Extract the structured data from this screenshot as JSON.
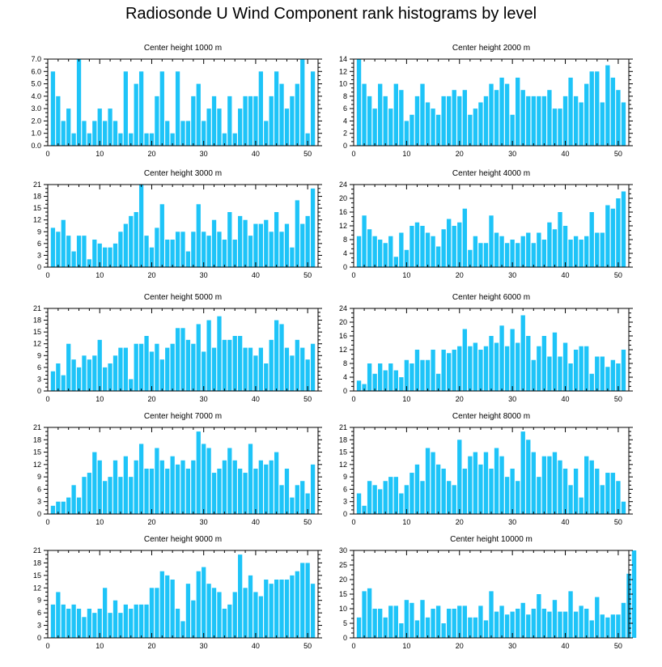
{
  "title": "Radiosonde U Wind Component rank histograms by level",
  "colors": {
    "bar": "#1ec4f8",
    "bar_edge": "#ffffff",
    "axis": "#000000"
  },
  "chart_data": [
    {
      "type": "bar",
      "title": "Center height 1000 m",
      "xlim": [
        0,
        52
      ],
      "ylim": [
        0,
        7
      ],
      "xticks": [
        0,
        10,
        20,
        30,
        40,
        50
      ],
      "yticks": [
        "0.0",
        "1.0",
        "2.0",
        "3.0",
        "4.0",
        "5.0",
        "6.0",
        "7.0"
      ],
      "values": [
        6,
        4,
        2,
        3,
        1,
        7,
        2,
        1,
        2,
        3,
        2,
        3,
        2,
        1,
        6,
        1,
        5,
        6,
        1,
        1,
        4,
        6,
        2,
        1,
        6,
        2,
        2,
        4,
        5,
        2,
        3,
        4,
        3,
        1,
        4,
        1,
        3,
        4,
        4,
        4,
        6,
        2,
        4,
        6,
        5,
        3,
        4,
        5,
        7,
        1,
        6
      ]
    },
    {
      "type": "bar",
      "title": "Center height 2000 m",
      "xlim": [
        0,
        52
      ],
      "ylim": [
        0,
        14
      ],
      "xticks": [
        0,
        10,
        20,
        30,
        40,
        50
      ],
      "yticks": [
        "0",
        "2",
        "4",
        "6",
        "8",
        "10",
        "12",
        "14"
      ],
      "values": [
        14,
        10,
        8,
        6,
        10,
        8,
        6,
        10,
        9,
        4,
        5,
        8,
        10,
        7,
        6,
        5,
        8,
        8,
        9,
        8,
        9,
        5,
        6,
        7,
        8,
        10,
        9,
        11,
        10,
        5,
        11,
        9,
        8,
        8,
        8,
        8,
        9,
        6,
        6,
        8,
        11,
        8,
        7,
        10,
        12,
        12,
        7,
        13,
        11,
        9,
        7
      ]
    },
    {
      "type": "bar",
      "title": "Center height 3000 m",
      "xlim": [
        0,
        52
      ],
      "ylim": [
        0,
        21
      ],
      "xticks": [
        0,
        10,
        20,
        30,
        40,
        50
      ],
      "yticks": [
        "0",
        "3",
        "6",
        "9",
        "12",
        "15",
        "18",
        "21"
      ],
      "values": [
        10,
        9,
        12,
        8,
        4,
        8,
        8,
        2,
        7,
        6,
        5,
        5,
        6,
        9,
        11,
        13,
        14,
        21,
        8,
        5,
        10,
        16,
        7,
        7,
        9,
        9,
        4,
        9,
        16,
        9,
        8,
        12,
        9,
        7,
        14,
        7,
        13,
        12,
        8,
        11,
        11,
        12,
        9,
        14,
        9,
        11,
        5,
        17,
        11,
        13,
        20
      ]
    },
    {
      "type": "bar",
      "title": "Center height 4000 m",
      "xlim": [
        0,
        52
      ],
      "ylim": [
        0,
        24
      ],
      "xticks": [
        0,
        10,
        20,
        30,
        40,
        50
      ],
      "yticks": [
        "0",
        "4",
        "8",
        "12",
        "16",
        "20",
        "24"
      ],
      "values": [
        9,
        15,
        11,
        9,
        8,
        7,
        9,
        3,
        10,
        5,
        12,
        13,
        12,
        10,
        9,
        6,
        11,
        14,
        12,
        13,
        17,
        5,
        9,
        7,
        7,
        15,
        10,
        9,
        7,
        8,
        7,
        9,
        10,
        7,
        10,
        8,
        13,
        11,
        16,
        12,
        8,
        9,
        8,
        9,
        16,
        10,
        10,
        18,
        17,
        20,
        22
      ]
    },
    {
      "type": "bar",
      "title": "Center height 5000 m",
      "xlim": [
        0,
        52
      ],
      "ylim": [
        0,
        21
      ],
      "xticks": [
        0,
        10,
        20,
        30,
        40,
        50
      ],
      "yticks": [
        "0",
        "3",
        "6",
        "9",
        "12",
        "15",
        "18",
        "21"
      ],
      "values": [
        5,
        7,
        4,
        12,
        8,
        6,
        9,
        8,
        9,
        13,
        6,
        7,
        9,
        11,
        11,
        3,
        12,
        12,
        14,
        10,
        12,
        8,
        11,
        12,
        16,
        16,
        13,
        12,
        17,
        10,
        18,
        11,
        19,
        13,
        13,
        14,
        14,
        11,
        11,
        9,
        11,
        7,
        13,
        18,
        17,
        11,
        9,
        13,
        11,
        8,
        12
      ]
    },
    {
      "type": "bar",
      "title": "Center height 6000 m",
      "xlim": [
        0,
        52
      ],
      "ylim": [
        0,
        24
      ],
      "xticks": [
        0,
        10,
        20,
        30,
        40,
        50
      ],
      "yticks": [
        "0",
        "4",
        "8",
        "12",
        "16",
        "20",
        "24"
      ],
      "values": [
        3,
        2,
        8,
        5,
        8,
        6,
        8,
        6,
        4,
        9,
        8,
        12,
        9,
        9,
        12,
        5,
        12,
        11,
        12,
        13,
        18,
        13,
        14,
        12,
        13,
        16,
        14,
        19,
        13,
        18,
        14,
        22,
        16,
        9,
        13,
        16,
        10,
        17,
        10,
        14,
        8,
        12,
        13,
        13,
        5,
        10,
        10,
        7,
        9,
        8,
        12
      ]
    },
    {
      "type": "bar",
      "title": "Center height 7000 m",
      "xlim": [
        0,
        52
      ],
      "ylim": [
        0,
        21
      ],
      "xticks": [
        0,
        10,
        20,
        30,
        40,
        50
      ],
      "yticks": [
        "0",
        "3",
        "6",
        "9",
        "12",
        "15",
        "18",
        "21"
      ],
      "values": [
        2,
        3,
        3,
        4,
        7,
        4,
        9,
        10,
        15,
        13,
        8,
        9,
        13,
        9,
        14,
        9,
        13,
        17,
        11,
        11,
        16,
        13,
        11,
        14,
        12,
        13,
        11,
        13,
        20,
        17,
        16,
        10,
        11,
        13,
        16,
        13,
        11,
        10,
        17,
        11,
        13,
        12,
        13,
        15,
        7,
        11,
        4,
        7,
        8,
        5,
        12
      ]
    },
    {
      "type": "bar",
      "title": "Center height 8000 m",
      "xlim": [
        0,
        52
      ],
      "ylim": [
        0,
        21
      ],
      "xticks": [
        0,
        10,
        20,
        30,
        40,
        50
      ],
      "yticks": [
        "0",
        "3",
        "6",
        "9",
        "12",
        "15",
        "18",
        "21"
      ],
      "values": [
        5,
        2,
        8,
        7,
        6,
        8,
        9,
        9,
        5,
        7,
        10,
        12,
        8,
        16,
        15,
        12,
        11,
        8,
        7,
        18,
        11,
        14,
        15,
        12,
        15,
        11,
        16,
        14,
        9,
        11,
        8,
        20,
        18,
        15,
        9,
        14,
        14,
        15,
        13,
        11,
        7,
        11,
        4,
        14,
        13,
        11,
        7,
        10,
        10,
        8,
        3
      ]
    },
    {
      "type": "bar",
      "title": "Center height 9000 m",
      "xlim": [
        0,
        52
      ],
      "ylim": [
        0,
        21
      ],
      "xticks": [
        0,
        10,
        20,
        30,
        40,
        50
      ],
      "yticks": [
        "0",
        "3",
        "6",
        "9",
        "12",
        "15",
        "18",
        "21"
      ],
      "values": [
        8,
        11,
        8,
        7,
        8,
        7,
        5,
        7,
        6,
        7,
        12,
        6,
        9,
        6,
        8,
        7,
        8,
        8,
        8,
        12,
        12,
        16,
        15,
        14,
        7,
        4,
        13,
        9,
        16,
        17,
        13,
        12,
        11,
        7,
        8,
        11,
        20,
        12,
        15,
        11,
        10,
        14,
        13,
        14,
        14,
        14,
        15,
        16,
        18,
        18,
        13
      ]
    },
    {
      "type": "bar",
      "title": "Center height 10000 m",
      "xlim": [
        0,
        52
      ],
      "ylim": [
        0,
        30
      ],
      "xticks": [
        0,
        10,
        20,
        30,
        40,
        50
      ],
      "yticks": [
        "0",
        "5",
        "10",
        "15",
        "20",
        "25",
        "30"
      ],
      "values": [
        7,
        16,
        17,
        10,
        10,
        7,
        11,
        11,
        5,
        13,
        12,
        6,
        13,
        7,
        10,
        11,
        5,
        10,
        10,
        11,
        11,
        7,
        7,
        11,
        6,
        16,
        9,
        11,
        8,
        9,
        10,
        12,
        8,
        10,
        15,
        10,
        9,
        13,
        9,
        9,
        16,
        9,
        11,
        10,
        6,
        14,
        8,
        7,
        8,
        8,
        12,
        22,
        30
      ]
    }
  ]
}
